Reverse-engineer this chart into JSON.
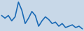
{
  "values": [
    -3,
    -5,
    -3,
    -7,
    -4,
    7,
    1,
    -9,
    -5,
    0,
    -3,
    -11,
    -7,
    -4,
    -6,
    -9,
    -8,
    -11,
    -9,
    -12,
    -11,
    -10,
    -12,
    -11,
    -13
  ],
  "line_color": "#1a6ab5",
  "background_color": "#c8d8e8",
  "linewidth": 1.2
}
